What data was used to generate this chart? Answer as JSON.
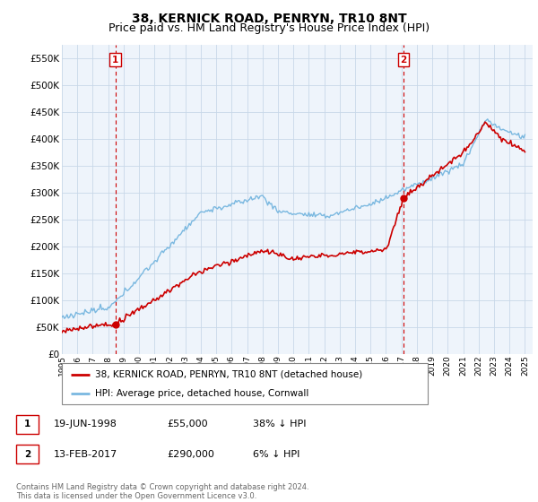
{
  "title": "38, KERNICK ROAD, PENRYN, TR10 8NT",
  "subtitle": "Price paid vs. HM Land Registry's House Price Index (HPI)",
  "ytick_values": [
    0,
    50000,
    100000,
    150000,
    200000,
    250000,
    300000,
    350000,
    400000,
    450000,
    500000,
    550000
  ],
  "ylim": [
    0,
    575000
  ],
  "xlim_start": 1995.0,
  "xlim_end": 2025.5,
  "sale1_date": 1998.46,
  "sale1_price": 55000,
  "sale1_label": "1",
  "sale2_date": 2017.12,
  "sale2_price": 290000,
  "sale2_label": "2",
  "hpi_color": "#7ab8e0",
  "price_color": "#cc0000",
  "chart_bg": "#eef4fb",
  "legend_line1": "38, KERNICK ROAD, PENRYN, TR10 8NT (detached house)",
  "legend_line2": "HPI: Average price, detached house, Cornwall",
  "table_row1_num": "1",
  "table_row1_date": "19-JUN-1998",
  "table_row1_price": "£55,000",
  "table_row1_hpi": "38% ↓ HPI",
  "table_row2_num": "2",
  "table_row2_date": "13-FEB-2017",
  "table_row2_price": "£290,000",
  "table_row2_hpi": "6% ↓ HPI",
  "footer": "Contains HM Land Registry data © Crown copyright and database right 2024.\nThis data is licensed under the Open Government Licence v3.0.",
  "grid_color": "#c8d8e8",
  "title_fontsize": 10,
  "subtitle_fontsize": 9
}
